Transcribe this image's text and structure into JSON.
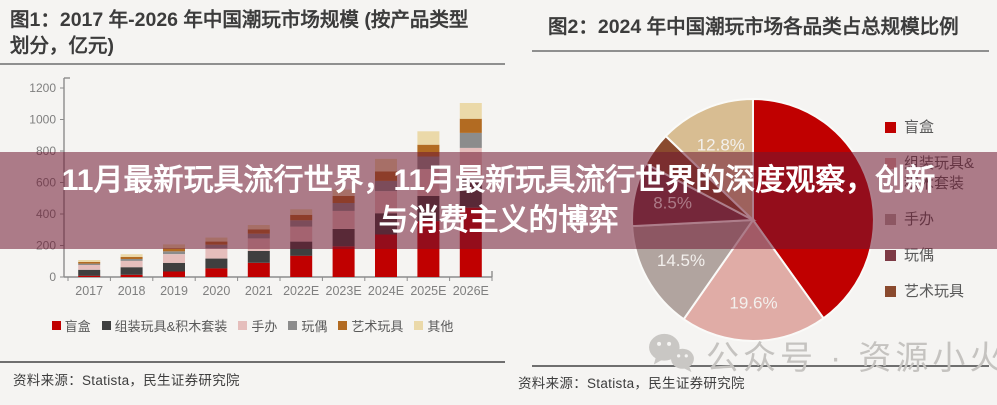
{
  "page": {
    "background": "#f5f4f2"
  },
  "overlay": {
    "lines": [
      "11月最新玩具流行世界，11月最新玩具流行世界的深度观察，创新",
      "与消费主义的博弈"
    ],
    "text_color": "#ffffff",
    "background": "rgba(112,24,50,0.55)"
  },
  "watermark": {
    "text": "公众号 · 资源小火锅",
    "icon": "wechat-icon",
    "color": "#c5c3c0"
  },
  "left_panel": {
    "title": "图1：2017 年-2026 年中国潮玩市场规模 (按产品类型划分，亿元)",
    "source": "资料来源：Statista，民生证券研究院"
  },
  "right_panel": {
    "title": "图2：2024 年中国潮玩市场各品类占总规模比例",
    "source": "资料来源：Statista，民生证券研究院"
  },
  "chart_data": [
    {
      "type": "bar",
      "stacked": true,
      "title": "2017 年-2026 年中国潮玩市场规模 (按产品类型划分，亿元)",
      "categories": [
        "2017",
        "2018",
        "2019",
        "2020",
        "2021",
        "2022E",
        "2023E",
        "2024E",
        "2025E",
        "2026E"
      ],
      "series": [
        {
          "name": "盲盒",
          "color": "#C00000",
          "values": [
            8,
            14,
            35,
            55,
            90,
            135,
            195,
            270,
            355,
            440
          ]
        },
        {
          "name": "组装玩具&积木套装",
          "color": "#3F3F3F",
          "values": [
            38,
            48,
            55,
            62,
            75,
            90,
            110,
            135,
            160,
            185
          ]
        },
        {
          "name": "手办",
          "color": "#E5BEBC",
          "values": [
            30,
            40,
            55,
            65,
            80,
            95,
            115,
            140,
            170,
            195
          ]
        },
        {
          "name": "玩偶",
          "color": "#8C8C8C",
          "values": [
            9,
            12,
            18,
            23,
            30,
            40,
            50,
            65,
            80,
            95
          ]
        },
        {
          "name": "艺术玩具",
          "color": "#B26B22",
          "values": [
            10,
            14,
            20,
            20,
            28,
            35,
            45,
            60,
            75,
            90
          ]
        },
        {
          "name": "其他",
          "color": "#EBD9A9",
          "values": [
            13,
            17,
            24,
            25,
            27,
            35,
            40,
            80,
            85,
            100
          ]
        }
      ],
      "totals": [
        108,
        145,
        207,
        250,
        330,
        430,
        555,
        750,
        925,
        1105
      ],
      "ylabel": "亿元",
      "ylim": [
        0,
        1200
      ],
      "ytick_step": 200,
      "grid": false,
      "legend_position": "bottom"
    },
    {
      "type": "pie",
      "title": "2024 年中国潮玩市场各品类占总规模比例",
      "slices": [
        {
          "name": "盲盒",
          "pct": 40.1,
          "color": "#C00000",
          "label": "",
          "label_visible": false,
          "in_legend": true
        },
        {
          "name": "组装玩具&积木套装",
          "pct": 19.6,
          "color": "#E0ACA6",
          "label": "19.6%",
          "label_visible": true,
          "in_legend": true
        },
        {
          "name": "手办",
          "pct": 14.5,
          "color": "#B1A49F",
          "label": "14.5%",
          "label_visible": true,
          "in_legend": true
        },
        {
          "name": "玩偶",
          "pct": 8.5,
          "color": "#7D3A45",
          "label": "8.5%",
          "label_visible": true,
          "in_legend": true
        },
        {
          "name": "艺术玩具",
          "pct": 4.5,
          "color": "#8A4A2E",
          "label": "",
          "label_visible": false,
          "in_legend": true
        },
        {
          "name": "其他",
          "pct": 12.8,
          "color": "#D8BD92",
          "label": "12.8%",
          "label_visible": true,
          "in_legend": false
        }
      ],
      "start_angle_deg": 0,
      "direction": "clockwise",
      "legend_position": "right"
    }
  ]
}
